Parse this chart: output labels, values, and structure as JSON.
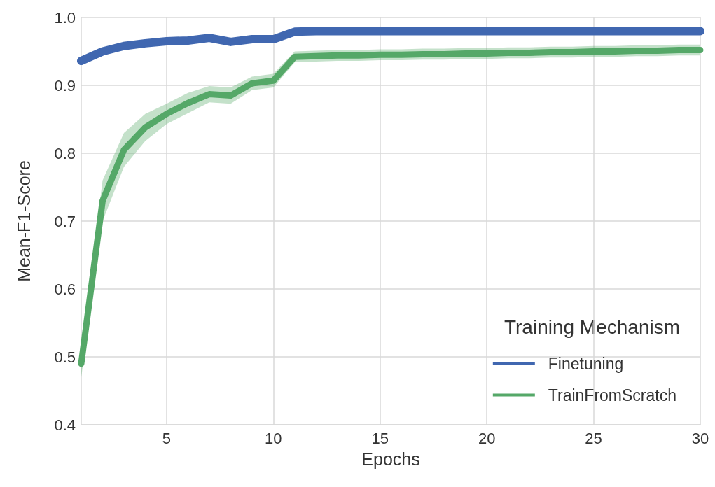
{
  "chart_data": {
    "type": "line",
    "xlabel": "Epochs",
    "ylabel": "Mean-F1-Score",
    "legend_title": "Training Mechanism",
    "x": [
      1,
      2,
      3,
      4,
      5,
      6,
      7,
      8,
      9,
      10,
      11,
      12,
      13,
      14,
      15,
      16,
      17,
      18,
      19,
      20,
      21,
      22,
      23,
      24,
      25,
      26,
      27,
      28,
      29,
      30
    ],
    "series": [
      {
        "name": "Finetuning",
        "color": "#4067b0",
        "values": [
          0.936,
          0.95,
          0.958,
          0.962,
          0.965,
          0.966,
          0.97,
          0.964,
          0.968,
          0.968,
          0.979,
          0.98,
          0.98,
          0.98,
          0.98,
          0.98,
          0.98,
          0.98,
          0.98,
          0.98,
          0.98,
          0.98,
          0.98,
          0.98,
          0.98,
          0.98,
          0.98,
          0.98,
          0.98,
          0.98
        ]
      },
      {
        "name": "TrainFromScratch",
        "color": "#55a868",
        "values": [
          0.49,
          0.73,
          0.805,
          0.838,
          0.858,
          0.874,
          0.887,
          0.885,
          0.903,
          0.907,
          0.942,
          0.943,
          0.944,
          0.944,
          0.945,
          0.945,
          0.946,
          0.946,
          0.947,
          0.947,
          0.948,
          0.948,
          0.949,
          0.949,
          0.95,
          0.95,
          0.951,
          0.951,
          0.952,
          0.952
        ],
        "lower": [
          0.47,
          0.7,
          0.78,
          0.818,
          0.843,
          0.859,
          0.875,
          0.873,
          0.893,
          0.897,
          0.934,
          0.935,
          0.936,
          0.936,
          0.937,
          0.937,
          0.938,
          0.938,
          0.939,
          0.939,
          0.94,
          0.94,
          0.941,
          0.941,
          0.942,
          0.942,
          0.943,
          0.943,
          0.944,
          0.944
        ],
        "upper": [
          0.51,
          0.76,
          0.83,
          0.858,
          0.873,
          0.889,
          0.899,
          0.897,
          0.913,
          0.917,
          0.95,
          0.951,
          0.952,
          0.952,
          0.953,
          0.953,
          0.954,
          0.954,
          0.955,
          0.955,
          0.956,
          0.956,
          0.957,
          0.957,
          0.958,
          0.958,
          0.959,
          0.959,
          0.96,
          0.96
        ]
      }
    ],
    "xlim": [
      1,
      30
    ],
    "xticks": [
      5,
      10,
      15,
      20,
      25,
      30
    ],
    "ylim": [
      0.4,
      1.0
    ],
    "yticks": [
      0.4,
      0.5,
      0.6,
      0.7,
      0.8,
      0.9,
      {
        "value": 1.0,
        "label": "1.0"
      }
    ],
    "grid": true,
    "legend": "bottom right",
    "line_style": "solid"
  }
}
